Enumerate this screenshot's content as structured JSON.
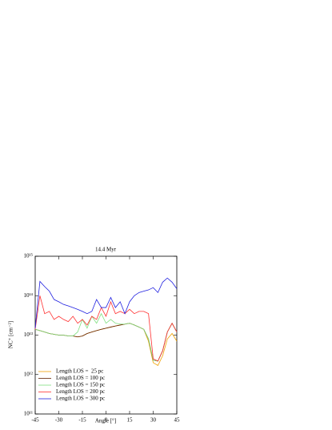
{
  "chart_data": {
    "type": "line",
    "title": "14.4 Myr",
    "xlabel": "Angle [°]",
    "ylabel": "NC⁺ [cm⁻²]",
    "x": [
      -45,
      -42,
      -39,
      -36,
      -33,
      -30,
      -27,
      -24,
      -21,
      -18,
      -15,
      -12,
      -9,
      -6,
      -3,
      0,
      3,
      6,
      9,
      12,
      15,
      18,
      21,
      24,
      27,
      30,
      33,
      36,
      39,
      42,
      45
    ],
    "series": [
      {
        "name": "Length LOS =  25 pc",
        "color": "#f0a000",
        "values": [
          14000000000000.0,
          13000000000000.0,
          12000000000000.0,
          11000000000000.0,
          10500000000000.0,
          10000000000000.0,
          10000000000000.0,
          9500000000000.0,
          9500000000000.0,
          9000000000000.0,
          9500000000000.0,
          11000000000000.0,
          12000000000000.0,
          13000000000000.0,
          14000000000000.0,
          15000000000000.0,
          16000000000000.0,
          17000000000000.0,
          18000000000000.0,
          19000000000000.0,
          20000000000000.0,
          18000000000000.0,
          16000000000000.0,
          14000000000000.0,
          7000000000000.0,
          2000000000000.0,
          1700000000000.0,
          3000000000000.0,
          8000000000000.0,
          11000000000000.0,
          7000000000000.0
        ]
      },
      {
        "name": "Length LOS = 100 pc",
        "color": "#602000",
        "values": [
          14000000000000.0,
          13000000000000.0,
          12000000000000.0,
          11000000000000.0,
          10500000000000.0,
          10000000000000.0,
          10000000000000.0,
          9500000000000.0,
          9500000000000.0,
          9000000000000.0,
          9500000000000.0,
          11000000000000.0,
          12000000000000.0,
          13000000000000.0,
          14000000000000.0,
          15000000000000.0,
          16000000000000.0,
          17000000000000.0,
          18000000000000.0,
          19000000000000.0,
          20000000000000.0,
          18000000000000.0,
          16000000000000.0,
          14000000000000.0,
          8000000000000.0,
          2300000000000.0,
          2200000000000.0,
          4000000000000.0,
          12000000000000.0,
          20000000000000.0,
          12000000000000.0
        ]
      },
      {
        "name": "Length LOS = 150 pc",
        "color": "#80e080",
        "values": [
          14000000000000.0,
          13000000000000.0,
          12000000000000.0,
          11000000000000.0,
          10500000000000.0,
          10000000000000.0,
          10000000000000.0,
          9500000000000.0,
          9500000000000.0,
          12000000000000.0,
          25000000000000.0,
          15000000000000.0,
          30000000000000.0,
          20000000000000.0,
          35000000000000.0,
          20000000000000.0,
          25000000000000.0,
          20000000000000.0,
          19000000000000.0,
          19000000000000.0,
          20000000000000.0,
          18000000000000.0,
          16000000000000.0,
          14000000000000.0,
          8000000000000.0,
          2300000000000.0,
          2200000000000.0,
          4000000000000.0,
          12000000000000.0,
          20000000000000.0,
          12000000000000.0
        ]
      },
      {
        "name": "Length LOS = 200 pc",
        "color": "#ff3030",
        "values": [
          14000000000000.0,
          100000000000000.0,
          35000000000000.0,
          40000000000000.0,
          25000000000000.0,
          30000000000000.0,
          25000000000000.0,
          22000000000000.0,
          30000000000000.0,
          20000000000000.0,
          25000000000000.0,
          18000000000000.0,
          30000000000000.0,
          25000000000000.0,
          50000000000000.0,
          30000000000000.0,
          70000000000000.0,
          35000000000000.0,
          40000000000000.0,
          35000000000000.0,
          45000000000000.0,
          35000000000000.0,
          40000000000000.0,
          40000000000000.0,
          35000000000000.0,
          2500000000000.0,
          2200000000000.0,
          4000000000000.0,
          12000000000000.0,
          20000000000000.0,
          12000000000000.0
        ]
      },
      {
        "name": "Length LOS = 300 pc",
        "color": "#2020e0",
        "values": [
          15000000000000.0,
          230000000000000.0,
          170000000000000.0,
          130000000000000.0,
          80000000000000.0,
          70000000000000.0,
          60000000000000.0,
          55000000000000.0,
          50000000000000.0,
          45000000000000.0,
          40000000000000.0,
          35000000000000.0,
          40000000000000.0,
          80000000000000.0,
          50000000000000.0,
          50000000000000.0,
          90000000000000.0,
          50000000000000.0,
          70000000000000.0,
          35000000000000.0,
          70000000000000.0,
          100000000000000.0,
          120000000000000.0,
          130000000000000.0,
          140000000000000.0,
          160000000000000.0,
          120000000000000.0,
          220000000000000.0,
          280000000000000.0,
          220000000000000.0,
          150000000000000.0
        ]
      }
    ],
    "xlim": [
      -45,
      45
    ],
    "xticks": [
      -45,
      -30,
      -15,
      0,
      15,
      30,
      45
    ],
    "ylim": [
      100000000000.0,
      1000000000000000.0
    ],
    "ylog": true,
    "yticks": [
      {
        "value": 100000000000.0,
        "label": "10¹¹"
      },
      {
        "value": 1000000000000.0,
        "label": "10¹²"
      },
      {
        "value": 10000000000000.0,
        "label": "10¹³"
      },
      {
        "value": 100000000000000.0,
        "label": "10¹⁴"
      },
      {
        "value": 1000000000000000.0,
        "label": "10¹⁵"
      }
    ]
  }
}
